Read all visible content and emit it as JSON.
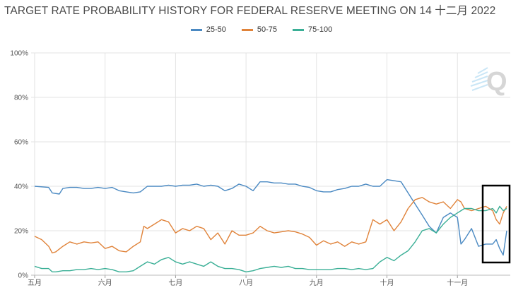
{
  "chart_data": {
    "type": "line",
    "title": "TARGET RATE PROBABILITY HISTORY FOR FEDERAL RESERVE MEETING ON 14 十二月 2022",
    "xlabel": "",
    "ylabel": "",
    "ylim": [
      0,
      100
    ],
    "x_tick_labels": [
      "五月",
      "六月",
      "七月",
      "八月",
      "九月",
      "十月",
      "十一月"
    ],
    "y_tick_labels": [
      "0%",
      "20%",
      "40%",
      "60%",
      "80%",
      "100%"
    ],
    "y_tick_values": [
      0,
      20,
      40,
      60,
      80,
      100
    ],
    "x_tick_index": [
      0,
      20,
      40,
      60,
      80,
      100,
      120
    ],
    "x_range": [
      -1,
      135
    ],
    "series": [
      {
        "name": "25-50",
        "color": "#4a89c2",
        "x": [
          0,
          4,
          5,
          7,
          8,
          10,
          12,
          14,
          16,
          18,
          20,
          22,
          24,
          26,
          28,
          30,
          32,
          34,
          36,
          38,
          40,
          42,
          44,
          46,
          48,
          50,
          52,
          54,
          56,
          58,
          60,
          62,
          64,
          66,
          68,
          70,
          72,
          74,
          76,
          78,
          80,
          82,
          84,
          86,
          88,
          90,
          92,
          94,
          96,
          98,
          100,
          102,
          104,
          106,
          108,
          110,
          112,
          114,
          116,
          118,
          120,
          121,
          122,
          124,
          126,
          128,
          130,
          131,
          132,
          133,
          134
        ],
        "y": [
          40,
          39.5,
          37,
          36.5,
          39,
          39.5,
          39.5,
          39,
          39,
          39.5,
          39,
          39.5,
          38,
          37.5,
          37,
          37.5,
          40,
          40,
          40,
          40.5,
          40,
          40.5,
          40.5,
          41,
          40,
          40.5,
          40,
          38,
          39,
          41,
          40,
          38,
          42,
          42,
          41.5,
          41.5,
          41,
          41,
          40,
          39.5,
          38,
          37.5,
          37.5,
          38.5,
          39,
          40,
          40,
          41,
          40,
          40,
          43,
          42.5,
          42,
          37,
          32,
          27,
          22,
          19,
          26,
          28,
          26,
          14,
          16,
          21,
          13,
          14,
          14,
          16,
          12,
          9,
          20
        ]
      },
      {
        "name": "50-75",
        "color": "#e0833a",
        "x": [
          0,
          2,
          4,
          5,
          6,
          8,
          10,
          12,
          14,
          16,
          18,
          20,
          22,
          24,
          26,
          28,
          30,
          31,
          32,
          34,
          36,
          38,
          40,
          42,
          44,
          46,
          48,
          50,
          52,
          54,
          56,
          58,
          60,
          62,
          64,
          66,
          68,
          70,
          72,
          74,
          76,
          78,
          80,
          82,
          84,
          86,
          88,
          90,
          92,
          94,
          96,
          98,
          100,
          102,
          104,
          106,
          108,
          110,
          112,
          114,
          116,
          118,
          120,
          121,
          122,
          124,
          126,
          128,
          130,
          131,
          132,
          133,
          134
        ],
        "y": [
          17.5,
          16,
          13,
          10,
          10.5,
          13,
          15,
          14,
          15,
          14.5,
          15,
          12,
          13,
          11,
          10.5,
          13,
          15,
          22,
          21,
          23,
          25,
          24,
          19,
          21,
          20,
          22,
          21,
          16,
          19,
          14,
          20,
          18,
          18,
          19,
          22,
          20,
          19,
          19.5,
          20,
          19.5,
          18.5,
          17,
          13.5,
          15.5,
          14,
          15,
          13,
          15,
          14,
          15,
          25,
          23,
          25,
          20,
          24,
          30,
          34,
          35,
          33,
          32,
          33,
          30,
          34,
          33,
          30,
          29,
          30,
          31,
          29,
          25,
          23,
          28,
          31
        ]
      },
      {
        "name": "75-100",
        "color": "#3aaf96",
        "x": [
          0,
          2,
          4,
          5,
          6,
          8,
          10,
          12,
          14,
          16,
          18,
          20,
          22,
          24,
          26,
          28,
          30,
          32,
          34,
          36,
          38,
          40,
          42,
          44,
          46,
          48,
          50,
          52,
          54,
          56,
          58,
          60,
          62,
          64,
          66,
          68,
          70,
          72,
          74,
          76,
          78,
          80,
          82,
          84,
          86,
          88,
          90,
          92,
          94,
          96,
          98,
          100,
          102,
          104,
          106,
          108,
          110,
          112,
          114,
          116,
          118,
          120,
          121,
          122,
          124,
          126,
          128,
          130,
          131,
          132,
          133,
          134
        ],
        "y": [
          4,
          3,
          3,
          1.5,
          1.5,
          2,
          2,
          2.5,
          2.5,
          3,
          2.5,
          3,
          2.5,
          1.5,
          1.5,
          2,
          4,
          6,
          5,
          7,
          8,
          6,
          5,
          6,
          5,
          4,
          6,
          4,
          3,
          3,
          2.5,
          1.5,
          2,
          3,
          3.5,
          4,
          3.5,
          4,
          3,
          3,
          2.5,
          2.5,
          2.5,
          2.5,
          3,
          3,
          2.5,
          3,
          2.5,
          3,
          6,
          8,
          6.5,
          9,
          11,
          15,
          20,
          21,
          19,
          23,
          26,
          28,
          29,
          30,
          30,
          29,
          29,
          30,
          28,
          31,
          29,
          30
        ]
      }
    ]
  }
}
